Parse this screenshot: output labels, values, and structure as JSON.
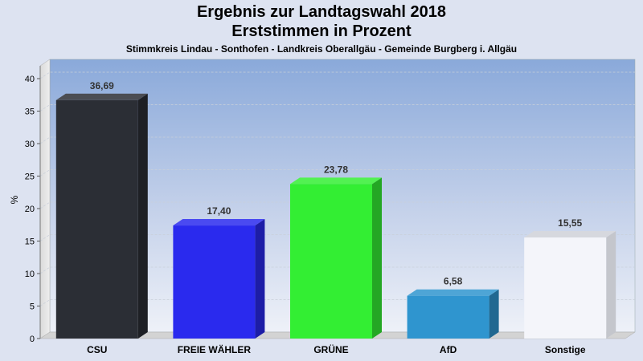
{
  "chart_data": {
    "type": "bar",
    "title": "Ergebnis zur Landtagswahl 2018",
    "title2": "Erststimmen in Prozent",
    "subtitle": "Stimmkreis Lindau - Sonthofen - Landkreis Oberallgäu - Gemeinde Burgberg i. Allgäu",
    "ylabel": "%",
    "xlabel": "",
    "ylim": [
      0,
      40
    ],
    "yticks": [
      "0",
      "5",
      "10",
      "15",
      "20",
      "25",
      "30",
      "35",
      "40"
    ],
    "categories": [
      "CSU",
      "FREIE WÄHLER",
      "GRÜNE",
      "AfD",
      "Sonstige"
    ],
    "values": [
      36.69,
      17.4,
      23.78,
      6.58,
      15.55
    ],
    "value_labels": [
      "36,69",
      "17,40",
      "23,78",
      "6,58",
      "15,55"
    ],
    "colors": [
      "#2b2e35",
      "#2a2aee",
      "#33ee33",
      "#2f95cf",
      "#f4f5fa"
    ],
    "grid": true,
    "legend": "none"
  }
}
